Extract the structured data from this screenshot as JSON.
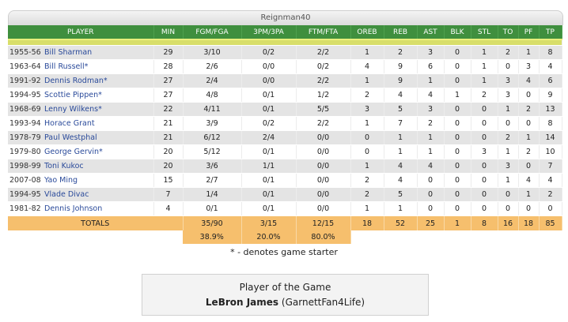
{
  "team_name": "Reignman40",
  "columns": [
    "PLAYER",
    "MIN",
    "FGM/FGA",
    "3PM/3PA",
    "FTM/FTA",
    "OREB",
    "REB",
    "AST",
    "BLK",
    "STL",
    "TO",
    "PF",
    "TP"
  ],
  "players": [
    {
      "year": "1955-56",
      "name": "Bill Sharman",
      "min": "29",
      "fg": "3/10",
      "three": "0/2",
      "ft": "2/2",
      "oreb": "1",
      "reb": "2",
      "ast": "3",
      "blk": "0",
      "stl": "1",
      "to": "2",
      "pf": "1",
      "tp": "8"
    },
    {
      "year": "1963-64",
      "name": "Bill Russell*",
      "min": "28",
      "fg": "2/6",
      "three": "0/0",
      "ft": "0/2",
      "oreb": "4",
      "reb": "9",
      "ast": "6",
      "blk": "0",
      "stl": "1",
      "to": "0",
      "pf": "3",
      "tp": "4"
    },
    {
      "year": "1991-92",
      "name": "Dennis Rodman*",
      "min": "27",
      "fg": "2/4",
      "three": "0/0",
      "ft": "2/2",
      "oreb": "1",
      "reb": "9",
      "ast": "1",
      "blk": "0",
      "stl": "1",
      "to": "3",
      "pf": "4",
      "tp": "6"
    },
    {
      "year": "1994-95",
      "name": "Scottie Pippen*",
      "min": "27",
      "fg": "4/8",
      "three": "0/1",
      "ft": "1/2",
      "oreb": "2",
      "reb": "4",
      "ast": "4",
      "blk": "1",
      "stl": "2",
      "to": "3",
      "pf": "0",
      "tp": "9"
    },
    {
      "year": "1968-69",
      "name": "Lenny Wilkens*",
      "min": "22",
      "fg": "4/11",
      "three": "0/1",
      "ft": "5/5",
      "oreb": "3",
      "reb": "5",
      "ast": "3",
      "blk": "0",
      "stl": "0",
      "to": "1",
      "pf": "2",
      "tp": "13"
    },
    {
      "year": "1993-94",
      "name": "Horace Grant",
      "min": "21",
      "fg": "3/9",
      "three": "0/2",
      "ft": "2/2",
      "oreb": "1",
      "reb": "7",
      "ast": "2",
      "blk": "0",
      "stl": "0",
      "to": "0",
      "pf": "0",
      "tp": "8"
    },
    {
      "year": "1978-79",
      "name": "Paul Westphal",
      "min": "21",
      "fg": "6/12",
      "three": "2/4",
      "ft": "0/0",
      "oreb": "0",
      "reb": "1",
      "ast": "1",
      "blk": "0",
      "stl": "0",
      "to": "2",
      "pf": "1",
      "tp": "14"
    },
    {
      "year": "1979-80",
      "name": "George Gervin*",
      "min": "20",
      "fg": "5/12",
      "three": "0/1",
      "ft": "0/0",
      "oreb": "0",
      "reb": "1",
      "ast": "1",
      "blk": "0",
      "stl": "3",
      "to": "1",
      "pf": "2",
      "tp": "10"
    },
    {
      "year": "1998-99",
      "name": "Toni Kukoc",
      "min": "20",
      "fg": "3/6",
      "three": "1/1",
      "ft": "0/0",
      "oreb": "1",
      "reb": "4",
      "ast": "4",
      "blk": "0",
      "stl": "0",
      "to": "3",
      "pf": "0",
      "tp": "7"
    },
    {
      "year": "2007-08",
      "name": "Yao Ming",
      "min": "15",
      "fg": "2/7",
      "three": "0/1",
      "ft": "0/0",
      "oreb": "2",
      "reb": "4",
      "ast": "0",
      "blk": "0",
      "stl": "0",
      "to": "1",
      "pf": "4",
      "tp": "4"
    },
    {
      "year": "1994-95",
      "name": "Vlade Divac",
      "min": "7",
      "fg": "1/4",
      "three": "0/1",
      "ft": "0/0",
      "oreb": "2",
      "reb": "5",
      "ast": "0",
      "blk": "0",
      "stl": "0",
      "to": "0",
      "pf": "1",
      "tp": "2"
    },
    {
      "year": "1981-82",
      "name": "Dennis Johnson",
      "min": "4",
      "fg": "0/1",
      "three": "0/1",
      "ft": "0/0",
      "oreb": "1",
      "reb": "1",
      "ast": "0",
      "blk": "0",
      "stl": "0",
      "to": "0",
      "pf": "0",
      "tp": "0"
    }
  ],
  "totals": {
    "label": "TOTALS",
    "fg": "35/90",
    "three": "3/15",
    "ft": "12/15",
    "oreb": "18",
    "reb": "52",
    "ast": "25",
    "blk": "1",
    "stl": "8",
    "to": "16",
    "pf": "18",
    "tp": "85"
  },
  "percentages": {
    "fg": "38.9%",
    "three": "20.0%",
    "ft": "80.0%"
  },
  "starter_note": "* - denotes game starter",
  "player_of_game": {
    "title": "Player of the Game",
    "name": "LeBron James",
    "user": "(GarnettFan4Life)"
  },
  "colors": {
    "header_green": "#3f8f3e",
    "divider_yellow": "#d8de6a",
    "totals_orange": "#f6bf6d",
    "row_gray": "#e4e4e4",
    "link_blue": "#2a4a9a"
  }
}
